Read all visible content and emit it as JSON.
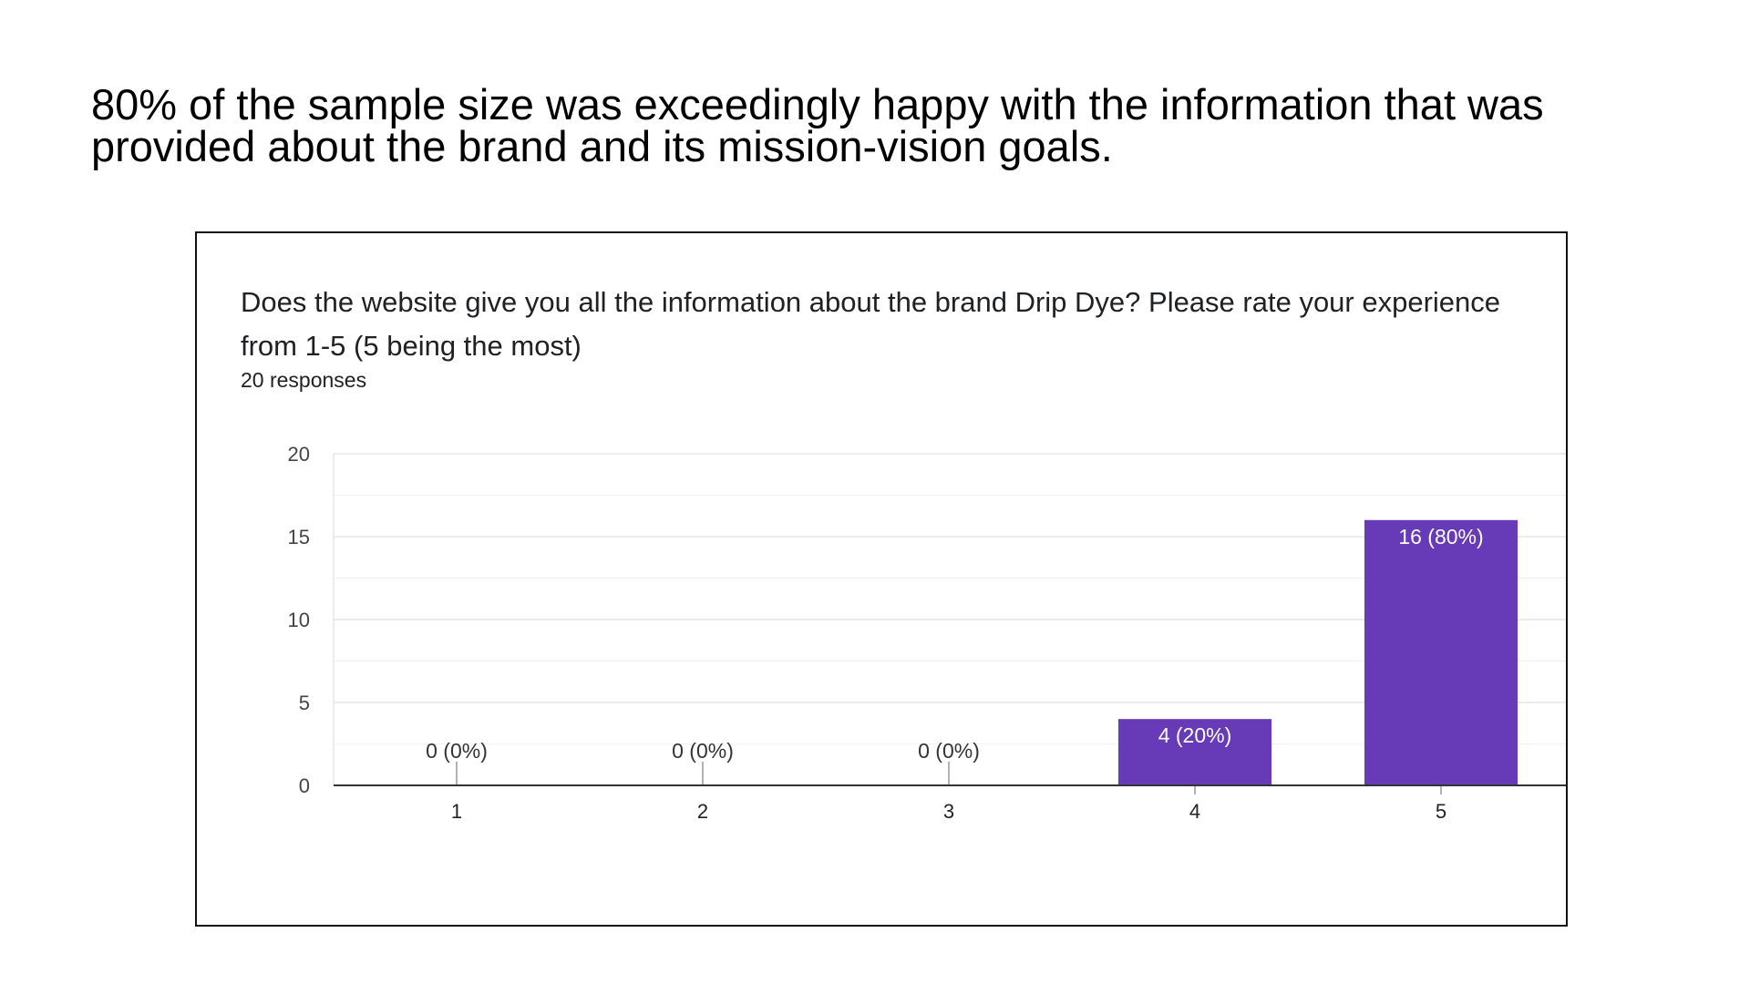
{
  "slide": {
    "title": "80% of the sample size was exceedingly happy with the information that was provided about the brand and its mission-vision goals."
  },
  "card": {
    "question": "Does the website give you all the information about the brand Drip Dye? Please rate your experience from 1-5 (5 being the most)",
    "responses": "20 responses"
  },
  "colors": {
    "bar": "#673ab7",
    "grid": "#e6e6e6",
    "axis": "#333333"
  },
  "chart_data": {
    "type": "bar",
    "categories": [
      "1",
      "2",
      "3",
      "4",
      "5"
    ],
    "values": [
      0,
      0,
      0,
      4,
      16
    ],
    "data_labels": [
      "0 (0%)",
      "0 (0%)",
      "0 (0%)",
      "4 (20%)",
      "16 (80%)"
    ],
    "yticks": [
      "0",
      "5",
      "10",
      "15",
      "20"
    ],
    "ylim": [
      0,
      20
    ],
    "grid": true,
    "title": "",
    "xlabel": "",
    "ylabel": ""
  }
}
